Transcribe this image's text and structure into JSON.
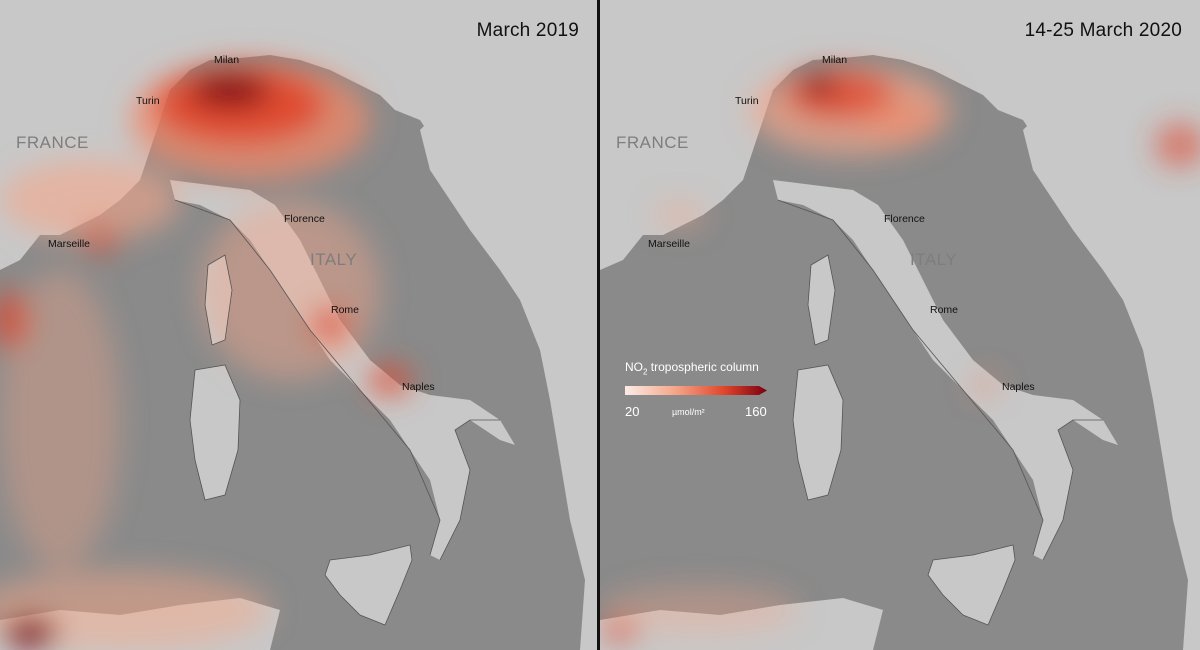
{
  "panels": {
    "left": {
      "title": "March 2019",
      "labels": {
        "milan": "Milan",
        "turin": "Turin",
        "france": "FRANCE",
        "marseille": "Marseille",
        "florence": "Florence",
        "italy": "ITALY",
        "rome": "Rome",
        "naples": "Naples"
      }
    },
    "right": {
      "title": "14-25 March 2020",
      "labels": {
        "milan": "Milan",
        "turin": "Turin",
        "france": "FRANCE",
        "marseille": "Marseille",
        "florence": "Florence",
        "italy": "ITALY",
        "rome": "Rome",
        "naples": "Naples"
      }
    }
  },
  "legend": {
    "title_prefix": "NO",
    "title_subscript": "2",
    "title_suffix": " tropospheric column",
    "min": "20",
    "unit": "µmol/m²",
    "max": "160",
    "colors": [
      "#f6e0d6",
      "#f5a78a",
      "#e0452b",
      "#8b0a1a"
    ]
  },
  "colors": {
    "land": "#c9c9c9",
    "sea": "#8a8a8a",
    "pollution_high": "#7a0012",
    "pollution_mid": "#e0452b",
    "pollution_low": "#f5a78a"
  }
}
